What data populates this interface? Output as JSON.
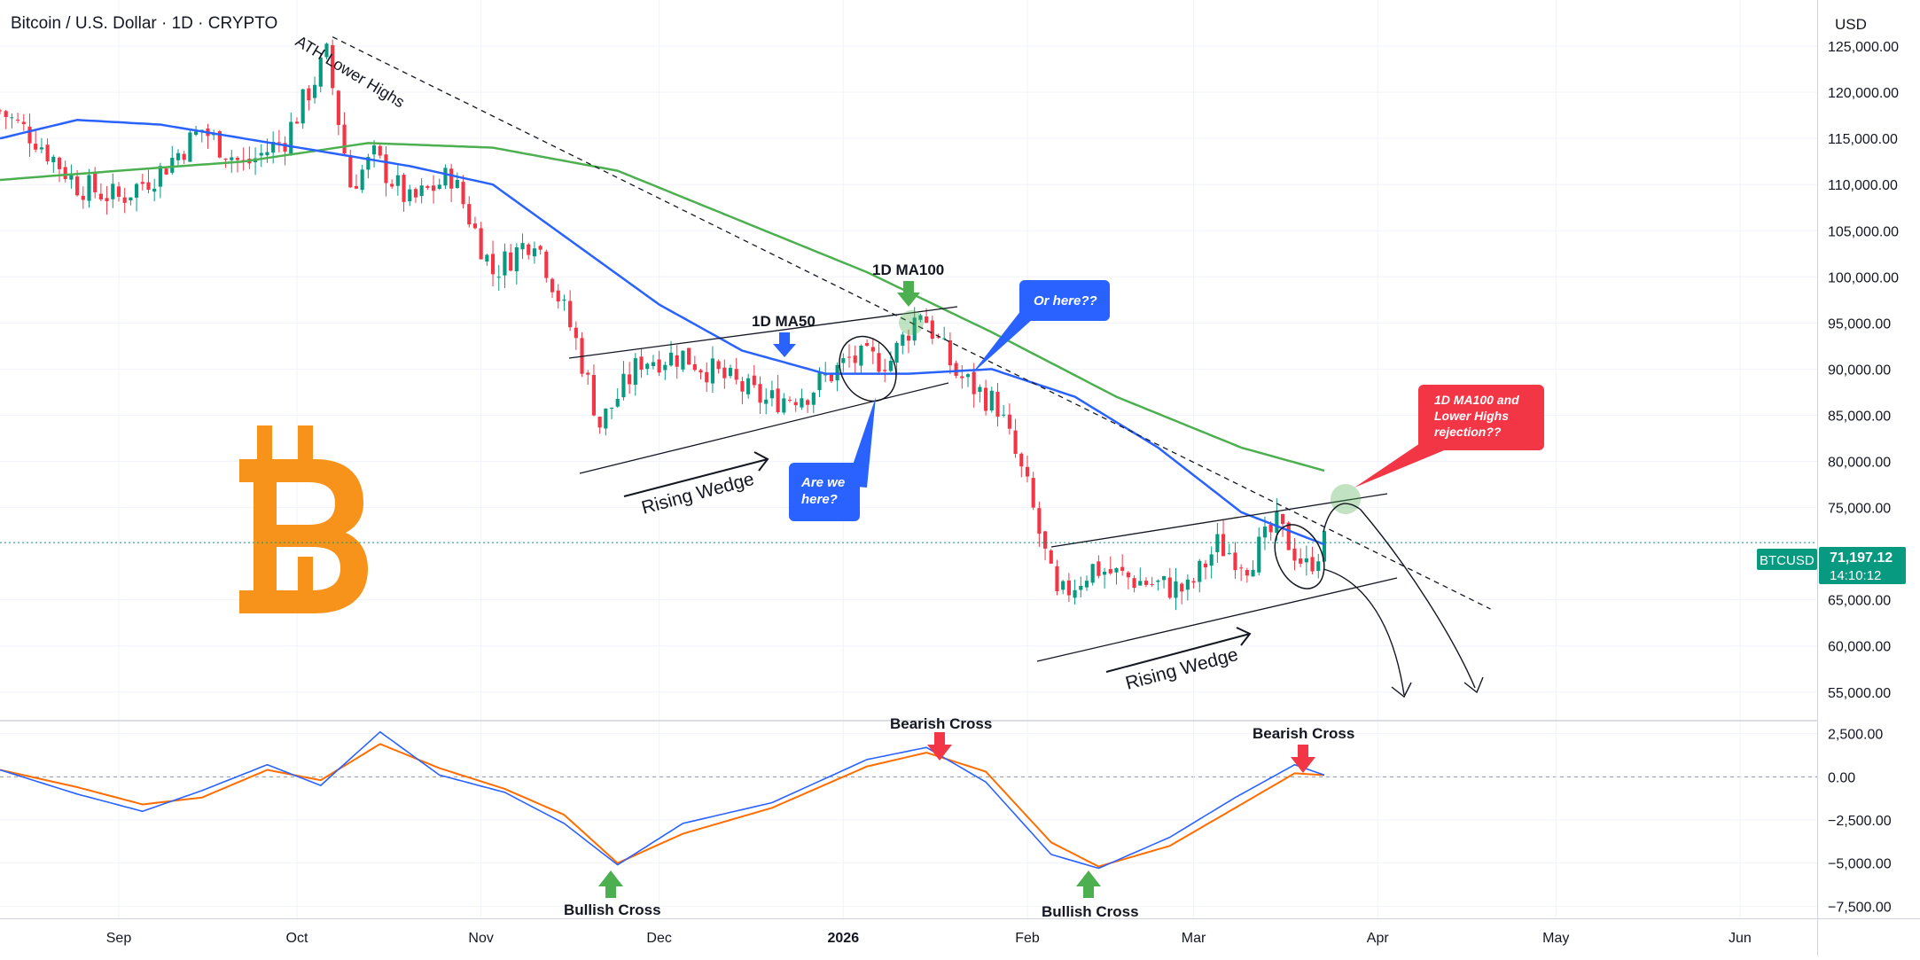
{
  "header": {
    "symbol_title": "Bitcoin / U.S. Dollar · 1D · CRYPTO",
    "currency": "USD"
  },
  "price_tag": {
    "symbol": "BTCUSD",
    "price": "71,197.12",
    "countdown": "14:10:12"
  },
  "colors": {
    "up": "#089981",
    "down": "#f23645",
    "ma50": "#2962ff",
    "ma100": "#4caf50",
    "macd": "#2962ff",
    "signal": "#ff6d00",
    "bitcoin": "#f7931a",
    "callout_blue": "#2962ff",
    "callout_red": "#f23645",
    "price_line": "#089981"
  },
  "annotations": {
    "ath_lower_highs": "ATH Lower Highs",
    "ma50_label": "1D MA50",
    "ma100_label": "1D MA100",
    "rising_wedge_1": "Rising Wedge",
    "rising_wedge_2": "Rising Wedge",
    "callout_are_we_here": [
      "Are we",
      "here?"
    ],
    "callout_or_here": "Or here??",
    "callout_rejection": [
      "1D MA100 and",
      "Lower Highs",
      "rejection??"
    ],
    "bearish_cross_1": "Bearish Cross",
    "bearish_cross_2": "Bearish Cross",
    "bullish_cross_1": "Bullish Cross",
    "bullish_cross_2": "Bullish Cross",
    "bitcoin_icon": "bitcoin-logo-icon"
  },
  "chart_data": [
    {
      "type": "candlestick",
      "title": "Bitcoin / U.S. Dollar · 1D · CRYPTO",
      "xlabel": "",
      "ylabel": "",
      "x_tick_labels": [
        "Sep",
        "Oct",
        "Nov",
        "Dec",
        "2026",
        "Feb",
        "Mar",
        "Apr",
        "May",
        "Jun"
      ],
      "y_tick_labels": [
        "125,000.00",
        "120,000.00",
        "115,000.00",
        "110,000.00",
        "105,000.00",
        "100,000.00",
        "95,000.00",
        "90,000.00",
        "85,000.00",
        "80,000.00",
        "75,000.00",
        "65,000.00",
        "60,000.00",
        "55,000.00"
      ],
      "y_ticks": [
        125000,
        120000,
        115000,
        110000,
        105000,
        100000,
        95000,
        90000,
        85000,
        80000,
        75000,
        65000,
        60000,
        55000
      ],
      "ylim": [
        52000,
        130000
      ],
      "date_range": [
        "2025-08-12",
        "2026-06-14"
      ],
      "last_price": 71197.12,
      "close_series": {
        "dates": [
          "2025-08-12",
          "2025-08-18",
          "2025-08-25",
          "2025-09-01",
          "2025-09-08",
          "2025-09-15",
          "2025-09-22",
          "2025-09-29",
          "2025-10-06",
          "2025-10-10",
          "2025-10-14",
          "2025-10-20",
          "2025-10-27",
          "2025-11-03",
          "2025-11-10",
          "2025-11-17",
          "2025-11-21",
          "2025-11-28",
          "2025-12-05",
          "2025-12-12",
          "2025-12-19",
          "2025-12-26",
          "2026-01-02",
          "2026-01-09",
          "2026-01-14",
          "2026-01-20",
          "2026-01-27",
          "2026-02-01",
          "2026-02-06",
          "2026-02-12",
          "2026-02-20",
          "2026-02-28",
          "2026-03-05",
          "2026-03-10",
          "2026-03-15",
          "2026-03-20",
          "2026-03-23"
        ],
        "values": [
          118000,
          115000,
          110000,
          108500,
          111500,
          116000,
          112000,
          115000,
          124000,
          110000,
          113000,
          108000,
          111000,
          100500,
          104500,
          93000,
          84000,
          91000,
          91500,
          89000,
          86500,
          87500,
          91000,
          91000,
          96500,
          89500,
          86000,
          77000,
          65000,
          68500,
          67000,
          66000,
          71000,
          69000,
          73000,
          68500,
          71197
        ]
      },
      "series": [
        {
          "name": "1D MA50",
          "dates": [
            "2025-08-12",
            "2025-08-25",
            "2025-09-08",
            "2025-09-22",
            "2025-10-06",
            "2025-10-20",
            "2025-11-03",
            "2025-11-17",
            "2025-12-01",
            "2025-12-15",
            "2025-12-29",
            "2026-01-12",
            "2026-01-26",
            "2026-02-09",
            "2026-02-23",
            "2026-03-09",
            "2026-03-23"
          ],
          "values": [
            115000,
            117000,
            116500,
            115000,
            113500,
            112000,
            110000,
            103500,
            97000,
            92000,
            89500,
            89500,
            90000,
            87000,
            81500,
            74500,
            71000
          ]
        },
        {
          "name": "1D MA100",
          "dates": [
            "2025-08-12",
            "2025-09-01",
            "2025-09-22",
            "2025-10-13",
            "2025-11-03",
            "2025-11-24",
            "2025-12-15",
            "2026-01-05",
            "2026-01-26",
            "2026-02-16",
            "2026-03-09",
            "2026-03-23"
          ],
          "values": [
            110500,
            111500,
            112500,
            114500,
            114000,
            111500,
            106000,
            100500,
            94000,
            87000,
            81500,
            79000
          ]
        }
      ],
      "trendline": {
        "name": "ATH Lower Highs",
        "points": [
          [
            "2025-10-07",
            126000
          ],
          [
            "2026-04-20",
            64000
          ]
        ]
      }
    },
    {
      "type": "line",
      "title": "",
      "y_tick_labels": [
        "2,500.00",
        "0.00",
        "−2,500.00",
        "−5,000.00",
        "−7,500.00"
      ],
      "y_ticks": [
        2500,
        0,
        -2500,
        -5000,
        -7500
      ],
      "ylim": [
        -8200,
        3200
      ],
      "series": [
        {
          "name": "",
          "dates": [
            "2025-08-12",
            "2025-08-25",
            "2025-09-05",
            "2025-09-15",
            "2025-09-26",
            "2025-10-05",
            "2025-10-15",
            "2025-10-25",
            "2025-11-05",
            "2025-11-15",
            "2025-11-24",
            "2025-12-05",
            "2025-12-20",
            "2026-01-05",
            "2026-01-15",
            "2026-01-25",
            "2026-02-05",
            "2026-02-13",
            "2026-02-25",
            "2026-03-08",
            "2026-03-18",
            "2026-03-23"
          ],
          "values": [
            400,
            -1000,
            -2000,
            -800,
            700,
            -500,
            2600,
            100,
            -900,
            -2700,
            -5100,
            -2700,
            -1500,
            1000,
            1700,
            -300,
            -4500,
            -5300,
            -3500,
            -1200,
            700,
            100
          ]
        },
        {
          "name": "",
          "dates": [
            "2025-08-12",
            "2025-08-25",
            "2025-09-05",
            "2025-09-15",
            "2025-09-26",
            "2025-10-05",
            "2025-10-15",
            "2025-10-25",
            "2025-11-05",
            "2025-11-15",
            "2025-11-24",
            "2025-12-05",
            "2025-12-20",
            "2026-01-05",
            "2026-01-15",
            "2026-01-25",
            "2026-02-05",
            "2026-02-13",
            "2026-02-25",
            "2026-03-08",
            "2026-03-18",
            "2026-03-23"
          ],
          "values": [
            400,
            -600,
            -1600,
            -1200,
            400,
            -200,
            1900,
            500,
            -700,
            -2200,
            -5000,
            -3300,
            -1800,
            600,
            1400,
            300,
            -3800,
            -5200,
            -4000,
            -1800,
            200,
            100
          ]
        }
      ],
      "markers": [
        {
          "label": "Bullish Cross",
          "date": "2025-11-27",
          "value": -5100
        },
        {
          "label": "Bullish Cross",
          "date": "2026-02-15",
          "value": -5300
        },
        {
          "label": "Bearish Cross",
          "date": "2026-01-17",
          "value": 1600
        },
        {
          "label": "Bearish Cross",
          "date": "2026-03-24",
          "value": 100
        }
      ]
    }
  ]
}
